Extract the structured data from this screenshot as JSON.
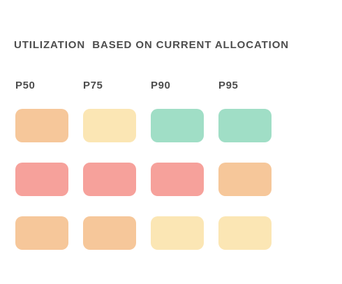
{
  "heading": "UTILIZATION  BASED ON CURRENT ALLOCATION",
  "columns": [
    "P50",
    "P75",
    "P90",
    "P95"
  ],
  "palette": {
    "orange": "#f6c79a",
    "yellow": "#fbe6b4",
    "green": "#a0dec6",
    "red": "#f6a19b"
  },
  "rows": [
    {
      "cells": [
        "orange",
        "yellow",
        "green",
        "green"
      ]
    },
    {
      "cells": [
        "red",
        "red",
        "red",
        "orange"
      ]
    },
    {
      "cells": [
        "orange",
        "orange",
        "yellow",
        "yellow"
      ]
    }
  ]
}
